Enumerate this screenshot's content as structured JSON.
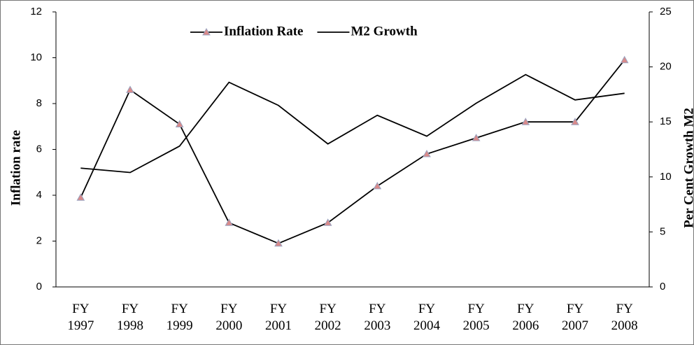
{
  "chart_data": {
    "type": "line",
    "categories": [
      "FY 1997",
      "FY 1998",
      "FY 1999",
      "FY 2000",
      "FY 2001",
      "FY 2002",
      "FY 2003",
      "FY 2004",
      "FY 2005",
      "FY 2006",
      "FY 2007",
      "FY 2008"
    ],
    "series": [
      {
        "name": "Inflation Rate",
        "color": "#000000",
        "marker": "triangle",
        "marker_color": "#d98a8a",
        "values": [
          3.9,
          8.6,
          7.1,
          2.8,
          1.9,
          2.8,
          4.4,
          5.8,
          6.5,
          7.2,
          7.2,
          9.9
        ]
      },
      {
        "name": "M2 Growth",
        "color": "#000000",
        "axis": "y2",
        "values": [
          10.8,
          10.4,
          12.8,
          18.6,
          16.5,
          13.0,
          15.6,
          13.7,
          16.7,
          19.3,
          17.0,
          17.6
        ]
      }
    ],
    "y_label": "Inflation rate",
    "y2_label": "Per Cent Growth M2",
    "ylim": [
      0,
      12
    ],
    "yticks": [
      0,
      2,
      4,
      6,
      8,
      10,
      12
    ],
    "y2lim": [
      0,
      25
    ],
    "y2ticks": [
      0,
      5,
      10,
      15,
      20,
      25
    ],
    "legend": "top",
    "grid": false
  }
}
